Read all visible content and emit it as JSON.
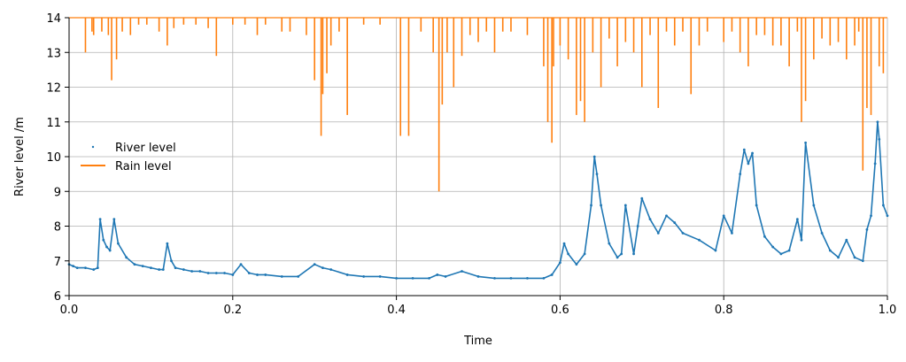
{
  "chart_data": {
    "type": "line",
    "xlabel": "Time",
    "ylabel": "River level /m",
    "xlim": [
      0.0,
      1.0
    ],
    "ylim": [
      6,
      14
    ],
    "xticks": [
      "0.0",
      "0.2",
      "0.4",
      "0.6",
      "0.8",
      "1.0"
    ],
    "yticks": [
      "6",
      "7",
      "8",
      "9",
      "10",
      "11",
      "12",
      "13",
      "14"
    ],
    "grid": true,
    "legend_position": "center-left",
    "series": [
      {
        "name": "River level",
        "style": "dots",
        "color": "#1f77b4",
        "x": [
          0.0,
          0.005,
          0.01,
          0.02,
          0.03,
          0.035,
          0.038,
          0.042,
          0.046,
          0.05,
          0.055,
          0.06,
          0.07,
          0.08,
          0.09,
          0.1,
          0.11,
          0.115,
          0.12,
          0.125,
          0.13,
          0.14,
          0.15,
          0.16,
          0.17,
          0.18,
          0.19,
          0.2,
          0.21,
          0.22,
          0.23,
          0.24,
          0.26,
          0.28,
          0.3,
          0.31,
          0.32,
          0.34,
          0.36,
          0.38,
          0.4,
          0.42,
          0.44,
          0.45,
          0.46,
          0.48,
          0.5,
          0.52,
          0.54,
          0.56,
          0.58,
          0.59,
          0.6,
          0.605,
          0.61,
          0.62,
          0.63,
          0.638,
          0.642,
          0.645,
          0.65,
          0.66,
          0.67,
          0.675,
          0.68,
          0.69,
          0.695,
          0.7,
          0.71,
          0.72,
          0.73,
          0.74,
          0.75,
          0.77,
          0.79,
          0.8,
          0.81,
          0.82,
          0.825,
          0.83,
          0.835,
          0.84,
          0.85,
          0.86,
          0.87,
          0.88,
          0.89,
          0.895,
          0.9,
          0.91,
          0.92,
          0.93,
          0.94,
          0.95,
          0.96,
          0.97,
          0.975,
          0.98,
          0.985,
          0.988,
          0.99,
          0.995,
          1.0
        ],
        "values": [
          6.9,
          6.85,
          6.8,
          6.8,
          6.75,
          6.8,
          8.2,
          7.6,
          7.4,
          7.3,
          8.2,
          7.5,
          7.1,
          6.9,
          6.85,
          6.8,
          6.75,
          6.75,
          7.5,
          7.0,
          6.8,
          6.75,
          6.7,
          6.7,
          6.65,
          6.65,
          6.65,
          6.6,
          6.9,
          6.65,
          6.6,
          6.6,
          6.55,
          6.55,
          6.9,
          6.8,
          6.75,
          6.6,
          6.55,
          6.55,
          6.5,
          6.5,
          6.5,
          6.6,
          6.55,
          6.7,
          6.55,
          6.5,
          6.5,
          6.5,
          6.5,
          6.6,
          6.95,
          7.5,
          7.2,
          6.9,
          7.2,
          8.6,
          10.0,
          9.5,
          8.6,
          7.5,
          7.1,
          7.2,
          8.6,
          7.2,
          8.0,
          8.8,
          8.2,
          7.8,
          8.3,
          8.1,
          7.8,
          7.6,
          7.3,
          8.3,
          7.8,
          9.5,
          10.2,
          9.8,
          10.1,
          8.6,
          7.7,
          7.4,
          7.2,
          7.3,
          8.2,
          7.6,
          10.4,
          8.6,
          7.8,
          7.3,
          7.1,
          7.6,
          7.1,
          7.0,
          7.9,
          8.3,
          9.8,
          11.0,
          10.5,
          8.6,
          8.3
        ]
      },
      {
        "name": "Rain level",
        "style": "line",
        "color": "#ff7f0e",
        "x": [
          0.02,
          0.028,
          0.03,
          0.04,
          0.048,
          0.052,
          0.058,
          0.065,
          0.075,
          0.085,
          0.095,
          0.11,
          0.12,
          0.128,
          0.14,
          0.155,
          0.17,
          0.18,
          0.2,
          0.215,
          0.23,
          0.24,
          0.26,
          0.27,
          0.29,
          0.3,
          0.308,
          0.31,
          0.315,
          0.32,
          0.33,
          0.34,
          0.36,
          0.38,
          0.405,
          0.415,
          0.43,
          0.445,
          0.452,
          0.456,
          0.462,
          0.47,
          0.48,
          0.49,
          0.5,
          0.51,
          0.52,
          0.53,
          0.54,
          0.56,
          0.58,
          0.585,
          0.59,
          0.592,
          0.6,
          0.61,
          0.62,
          0.625,
          0.63,
          0.64,
          0.65,
          0.66,
          0.67,
          0.68,
          0.69,
          0.7,
          0.71,
          0.72,
          0.73,
          0.74,
          0.75,
          0.76,
          0.77,
          0.78,
          0.8,
          0.81,
          0.82,
          0.83,
          0.84,
          0.85,
          0.86,
          0.87,
          0.88,
          0.89,
          0.895,
          0.9,
          0.91,
          0.92,
          0.93,
          0.94,
          0.95,
          0.96,
          0.965,
          0.97,
          0.975,
          0.98,
          0.99,
          0.995
        ],
        "values": [
          13.0,
          13.6,
          13.5,
          13.6,
          13.5,
          12.2,
          12.8,
          13.6,
          13.5,
          13.8,
          13.8,
          13.6,
          13.2,
          13.7,
          13.8,
          13.8,
          13.7,
          12.9,
          13.8,
          13.8,
          13.5,
          13.8,
          13.6,
          13.6,
          13.5,
          12.2,
          10.6,
          11.8,
          12.4,
          13.2,
          13.6,
          11.2,
          13.8,
          13.8,
          10.6,
          10.6,
          13.6,
          13.0,
          9.0,
          11.5,
          13.0,
          12.0,
          12.9,
          13.5,
          13.3,
          13.6,
          13.0,
          13.6,
          13.6,
          13.5,
          12.6,
          11.0,
          10.4,
          12.6,
          13.2,
          12.8,
          11.2,
          11.6,
          11.0,
          13.0,
          12.0,
          13.4,
          12.6,
          13.3,
          13.0,
          12.0,
          13.5,
          11.4,
          13.6,
          13.2,
          13.6,
          11.8,
          13.2,
          13.6,
          13.3,
          13.6,
          13.0,
          12.6,
          13.5,
          13.5,
          13.2,
          13.2,
          12.6,
          13.6,
          11.0,
          11.6,
          12.8,
          13.4,
          13.2,
          13.3,
          12.8,
          13.2,
          13.6,
          9.6,
          11.4,
          11.2,
          12.6,
          12.4
        ]
      }
    ]
  }
}
